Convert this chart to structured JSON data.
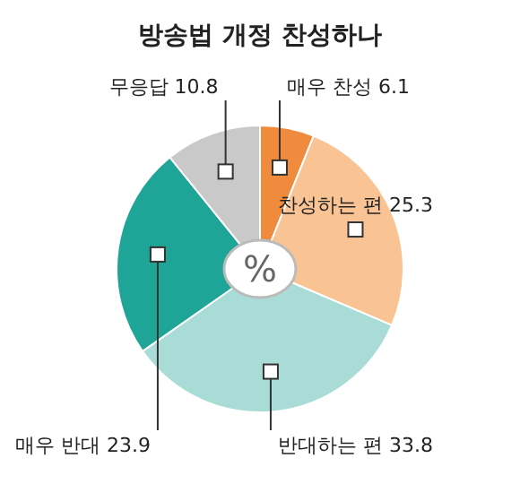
{
  "chart_data": {
    "type": "pie",
    "title": "방송법 개정 찬성하나",
    "categories": [
      "매우 찬성",
      "찬성하는 편",
      "반대하는 편",
      "매우 반대",
      "무응답"
    ],
    "values": [
      6.1,
      25.3,
      33.8,
      23.9,
      10.8
    ],
    "colors": [
      "#f08a3c",
      "#f9c394",
      "#a9dcd6",
      "#1ea597",
      "#c9c9c9"
    ],
    "data_labels": true,
    "annotations": [
      "%"
    ]
  }
}
